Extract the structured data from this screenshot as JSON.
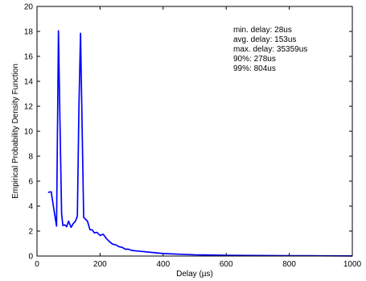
{
  "chart_data": {
    "type": "line",
    "title": "",
    "xlabel": "Delay (µs)",
    "ylabel": "Empirical Probability Density Function",
    "xlim": [
      0,
      1000
    ],
    "ylim": [
      0,
      20
    ],
    "xticks": [
      0,
      200,
      400,
      600,
      800,
      1000
    ],
    "yticks": [
      0,
      2,
      4,
      6,
      8,
      10,
      12,
      14,
      16,
      18,
      20
    ],
    "grid": false,
    "line_color": "#0000ff",
    "annotations": [
      "min.  delay: 28us",
      "avg. delay: 153us",
      "max. delay: 35359us",
      "90%: 278us",
      "99%: 804us"
    ],
    "x": [
      35,
      45,
      55,
      62,
      68,
      72,
      78,
      82,
      88,
      94,
      100,
      108,
      115,
      122,
      128,
      133,
      138,
      142,
      148,
      152,
      160,
      168,
      175,
      182,
      190,
      200,
      210,
      220,
      230,
      240,
      250,
      260,
      270,
      280,
      290,
      300,
      320,
      340,
      360,
      380,
      400,
      450,
      500,
      550,
      600,
      700,
      800,
      900,
      1000
    ],
    "y": [
      5.1,
      5.15,
      3.5,
      2.4,
      18.05,
      12.0,
      3.4,
      2.45,
      2.5,
      2.35,
      2.8,
      2.3,
      2.6,
      2.8,
      3.2,
      12.0,
      17.85,
      12.0,
      3.1,
      3.0,
      2.8,
      2.1,
      2.1,
      1.85,
      1.9,
      1.65,
      1.75,
      1.4,
      1.15,
      0.95,
      0.9,
      0.75,
      0.7,
      0.55,
      0.55,
      0.45,
      0.4,
      0.35,
      0.3,
      0.25,
      0.2,
      0.15,
      0.1,
      0.08,
      0.06,
      0.04,
      0.03,
      0.02,
      0.01
    ]
  }
}
